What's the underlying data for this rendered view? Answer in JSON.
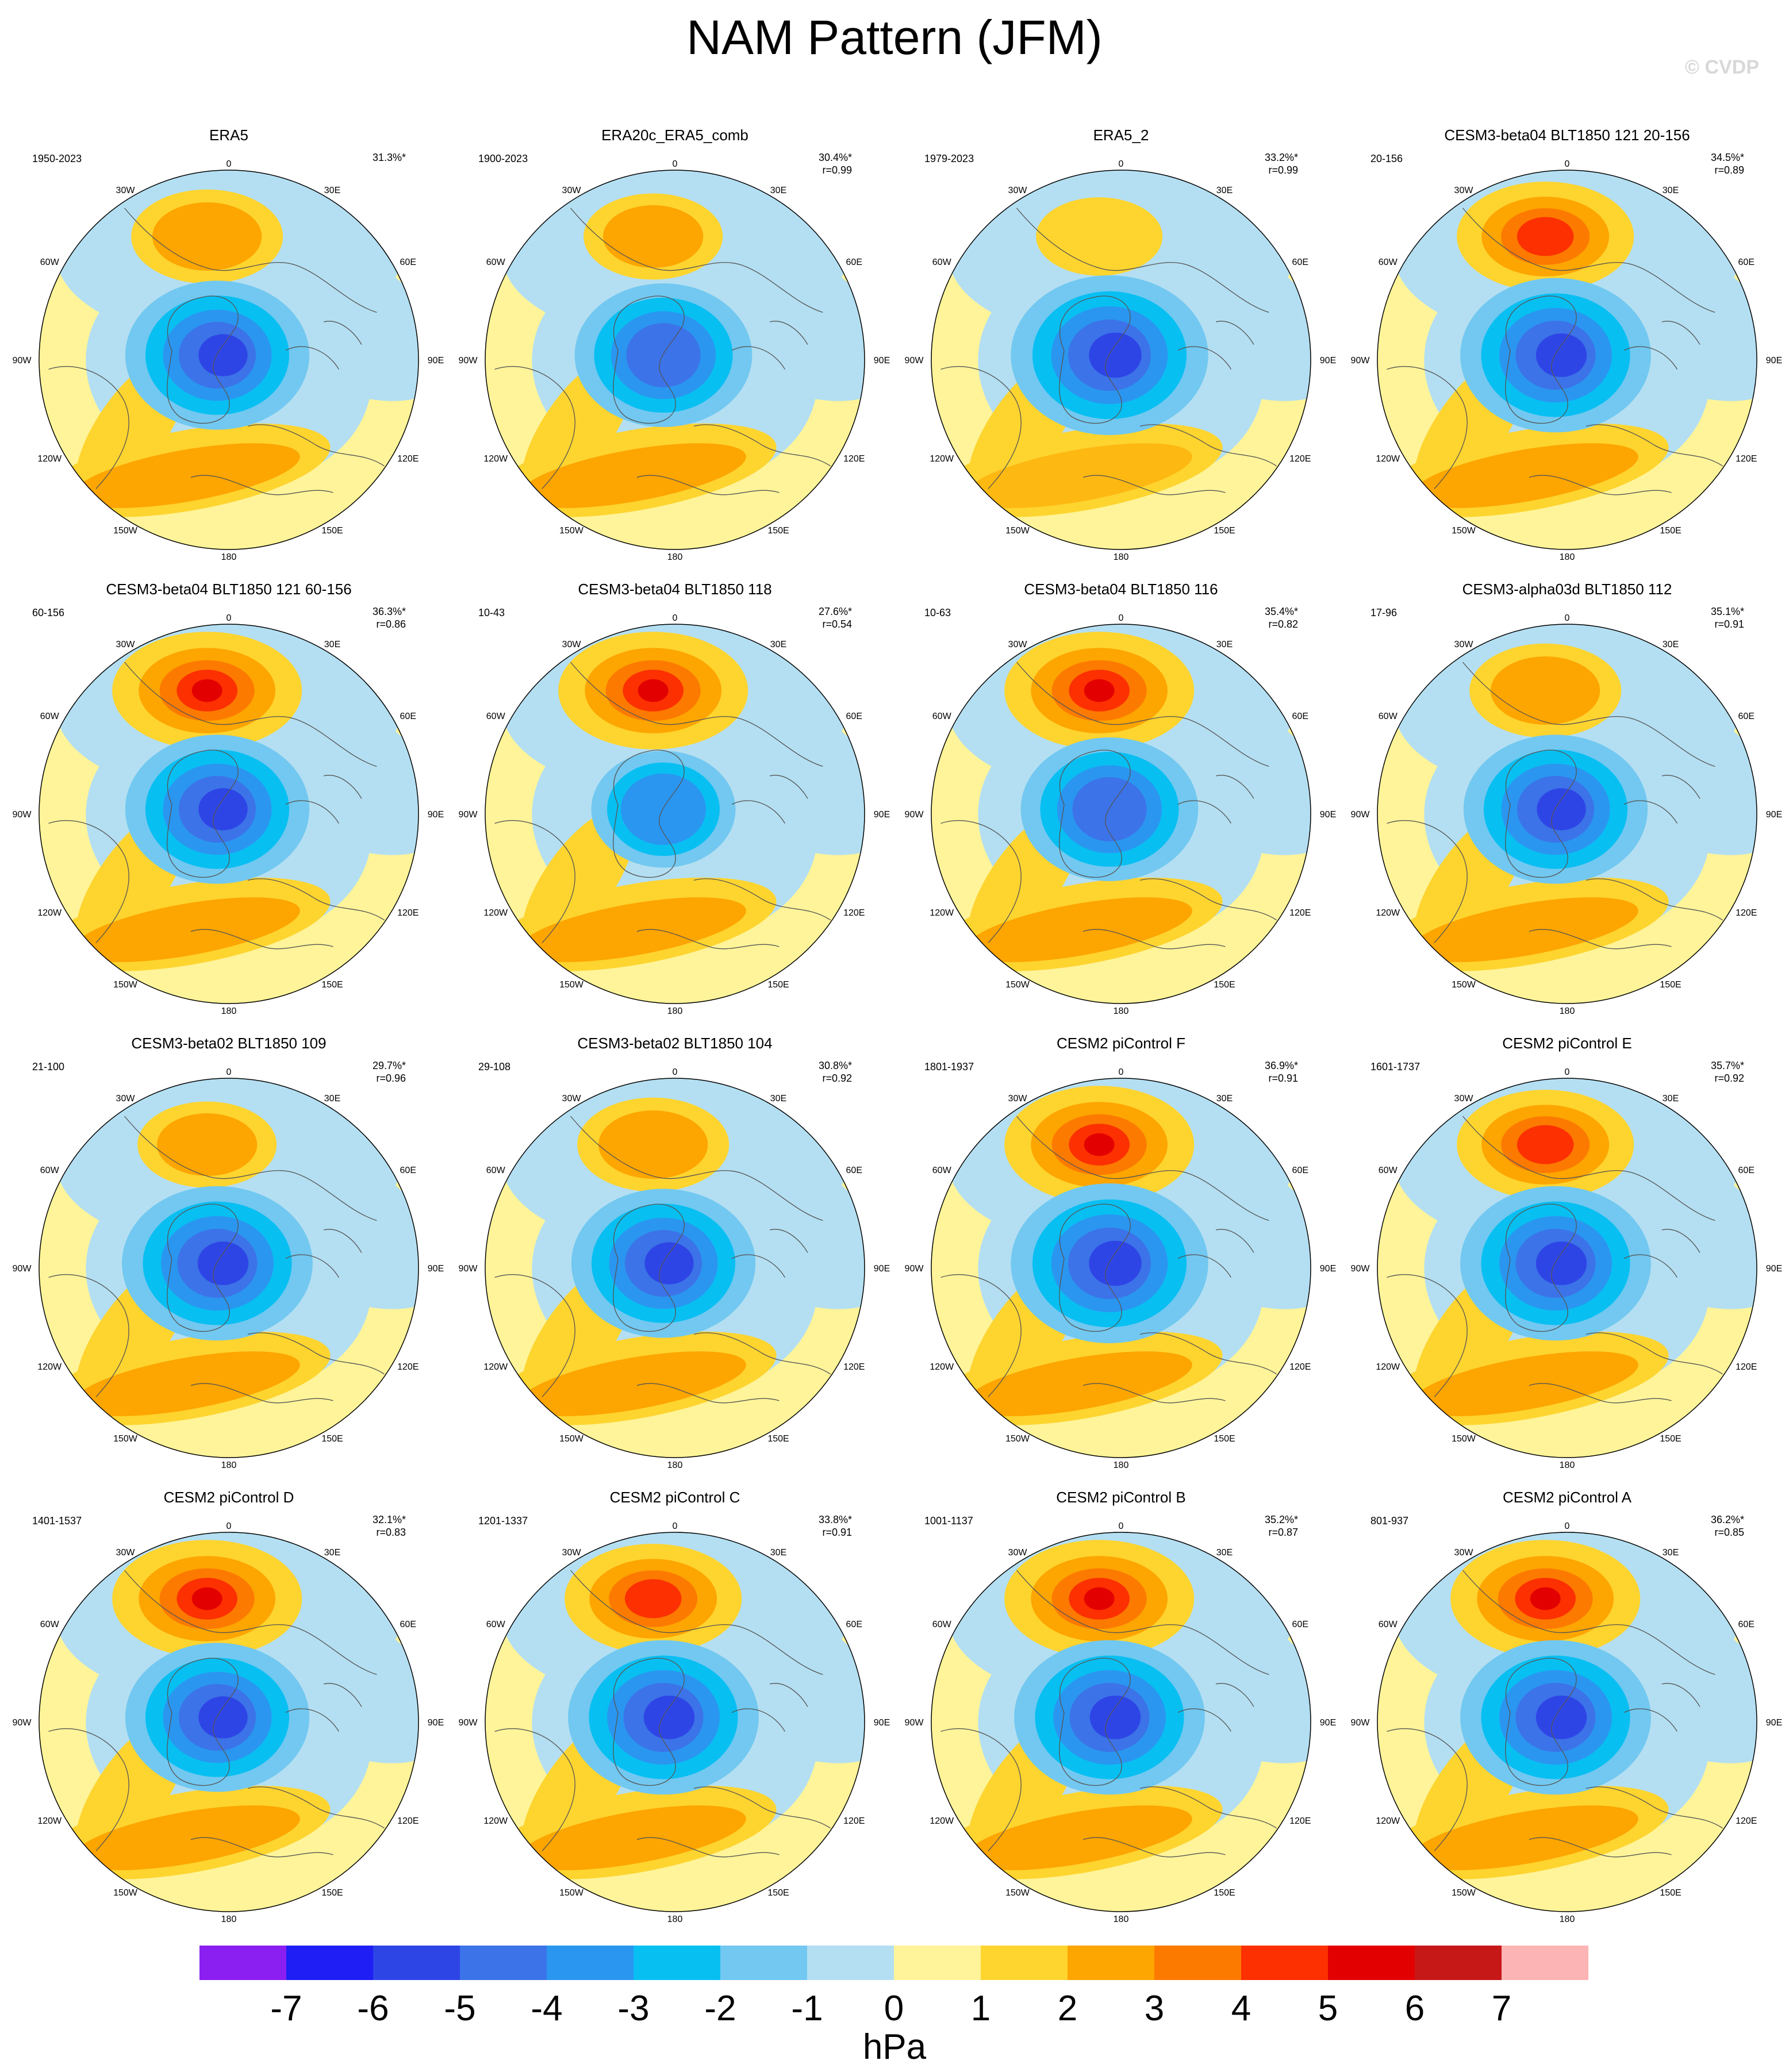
{
  "title": "NAM Pattern (JFM)",
  "watermark": "© CVDP",
  "lon_labels": [
    "180",
    "150E",
    "120E",
    "90E",
    "60E",
    "30E",
    "0",
    "30W",
    "60W",
    "90W",
    "120W",
    "150W"
  ],
  "panels": [
    {
      "title": "ERA5",
      "period": "1950-2023",
      "pct": "31.3%*",
      "r": "",
      "pos": {
        "lon": -170,
        "amp": 0.7
      },
      "neg": {
        "amp": 0.75
      }
    },
    {
      "title": "ERA20c_ERA5_comb",
      "period": "1900-2023",
      "pct": "30.4%*",
      "r": "r=0.99",
      "pos": {
        "lon": -170,
        "amp": 0.6
      },
      "neg": {
        "amp": 0.7
      }
    },
    {
      "title": "ERA5_2",
      "period": "1979-2023",
      "pct": "33.2%*",
      "r": "r=0.99",
      "pos": {
        "lon": -170,
        "amp": 0.5
      },
      "neg": {
        "amp": 0.85
      }
    },
    {
      "title": "CESM3-beta04 BLT1850 121 20-156",
      "period": "20-156",
      "pct": "34.5%*",
      "r": "r=0.89",
      "pos": {
        "lon": -170,
        "amp": 0.9
      },
      "neg": {
        "amp": 0.8
      }
    },
    {
      "title": "CESM3-beta04 BLT1850 121 60-156",
      "period": "60-156",
      "pct": "36.3%*",
      "r": "r=0.86",
      "pos": {
        "lon": -170,
        "amp": 1.0
      },
      "neg": {
        "amp": 0.75
      }
    },
    {
      "title": "CESM3-beta04 BLT1850 118",
      "period": "10-43",
      "pct": "27.6%*",
      "r": "r=0.54",
      "pos": {
        "lon": -170,
        "amp": 1.0
      },
      "neg": {
        "amp": 0.45
      }
    },
    {
      "title": "CESM3-beta04 BLT1850 116",
      "period": "10-63",
      "pct": "35.4%*",
      "r": "r=0.82",
      "pos": {
        "lon": -170,
        "amp": 1.0
      },
      "neg": {
        "amp": 0.7
      }
    },
    {
      "title": "CESM3-alpha03d BLT1850 112",
      "period": "17-96",
      "pct": "35.1%*",
      "r": "r=0.91",
      "pos": {
        "lon": -170,
        "amp": 0.7
      },
      "neg": {
        "amp": 0.75
      }
    },
    {
      "title": "CESM3-beta02 BLT1850 109",
      "period": "21-100",
      "pct": "29.7%*",
      "r": "r=0.96",
      "pos": {
        "lon": -170,
        "amp": 0.6
      },
      "neg": {
        "amp": 0.8
      }
    },
    {
      "title": "CESM3-beta02 BLT1850 104",
      "period": "29-108",
      "pct": "30.8%*",
      "r": "r=0.92",
      "pos": {
        "lon": -170,
        "amp": 0.7
      },
      "neg": {
        "amp": 0.75
      }
    },
    {
      "title": "CESM2 piControl F",
      "period": "1801-1937",
      "pct": "36.9%*",
      "r": "r=0.91",
      "pos": {
        "lon": -170,
        "amp": 1.0
      },
      "neg": {
        "amp": 0.85
      }
    },
    {
      "title": "CESM2 piControl E",
      "period": "1601-1737",
      "pct": "35.7%*",
      "r": "r=0.92",
      "pos": {
        "lon": -170,
        "amp": 0.9
      },
      "neg": {
        "amp": 0.8
      }
    },
    {
      "title": "CESM2 piControl D",
      "period": "1401-1537",
      "pct": "32.1%*",
      "r": "r=0.83",
      "pos": {
        "lon": -170,
        "amp": 1.0
      },
      "neg": {
        "amp": 0.75
      }
    },
    {
      "title": "CESM2 piControl C",
      "period": "1201-1337",
      "pct": "33.8%*",
      "r": "r=0.91",
      "pos": {
        "lon": -170,
        "amp": 0.9
      },
      "neg": {
        "amp": 0.8
      }
    },
    {
      "title": "CESM2 piControl B",
      "period": "1001-1137",
      "pct": "35.2%*",
      "r": "r=0.87",
      "pos": {
        "lon": -170,
        "amp": 1.0
      },
      "neg": {
        "amp": 0.8
      }
    },
    {
      "title": "CESM2 piControl A",
      "period": "801-937",
      "pct": "36.2%*",
      "r": "r=0.85",
      "pos": {
        "lon": -170,
        "amp": 1.0
      },
      "neg": {
        "amp": 0.8
      }
    }
  ],
  "colorbar": {
    "unit": "hPa",
    "ticks": [
      "-7",
      "-6",
      "-5",
      "-4",
      "-3",
      "-2",
      "-1",
      "0",
      "1",
      "2",
      "3",
      "4",
      "5",
      "6",
      "7"
    ],
    "colors": [
      "#8b1ef0",
      "#1e1ef5",
      "#2e45e6",
      "#3c73e8",
      "#2a96f0",
      "#08bff2",
      "#72c8f0",
      "#b4dff2",
      "#fff499",
      "#fed42f",
      "#fda500",
      "#fc7a00",
      "#fc3000",
      "#e30000",
      "#c71818",
      "#fdb4b4"
    ]
  }
}
